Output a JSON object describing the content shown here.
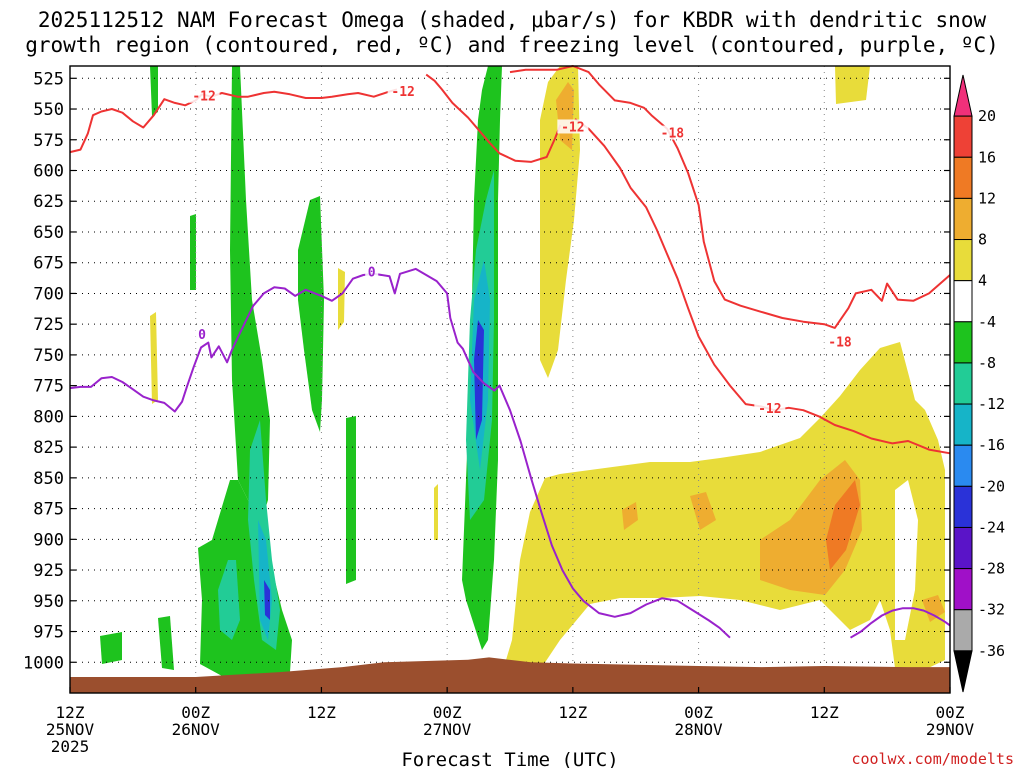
{
  "chart_data": {
    "type": "time-height",
    "title_line1": "2025112512 NAM Forecast Omega (shaded, μbar/s) for KBDR with dendritic snow",
    "title_line2": "growth region (contoured, red, ºC) and freezing level (contoured, purple, ºC)",
    "xlabel": "Forecast Time (UTC)",
    "credit": "coolwx.com/modelts",
    "x_range_hours": [
      0,
      84
    ],
    "y_range_hpa": [
      1025,
      515
    ],
    "y_ticks": [
      "525",
      "550",
      "575",
      "600",
      "625",
      "650",
      "675",
      "700",
      "725",
      "750",
      "775",
      "800",
      "825",
      "850",
      "875",
      "900",
      "925",
      "950",
      "975",
      "1000"
    ],
    "x_ticks": [
      {
        "h": 0,
        "l1": "12Z",
        "l2": "25NOV",
        "l3": "2025"
      },
      {
        "h": 12,
        "l1": "00Z",
        "l2": "26NOV",
        "l3": ""
      },
      {
        "h": 24,
        "l1": "12Z",
        "l2": "",
        "l3": ""
      },
      {
        "h": 36,
        "l1": "00Z",
        "l2": "27NOV",
        "l3": ""
      },
      {
        "h": 48,
        "l1": "12Z",
        "l2": "",
        "l3": ""
      },
      {
        "h": 60,
        "l1": "00Z",
        "l2": "28NOV",
        "l3": ""
      },
      {
        "h": 72,
        "l1": "12Z",
        "l2": "",
        "l3": ""
      },
      {
        "h": 84,
        "l1": "00Z",
        "l2": "29NOV",
        "l3": ""
      }
    ],
    "colorbar": {
      "labels": [
        "20",
        "16",
        "12",
        "8",
        "4",
        "-4",
        "-8",
        "-12",
        "-16",
        "-20",
        "-24",
        "-28",
        "-32",
        "-36"
      ],
      "colors": [
        "#f0307a",
        "#ee4136",
        "#ef7a24",
        "#eead30",
        "#e8dc3a",
        "#ffffff",
        "#1ec31e",
        "#22cc96",
        "#16b4c8",
        "#2a8af0",
        "#2a32d8",
        "#5a14c8",
        "#a010c8",
        "#aaaaaa",
        "#000000"
      ]
    },
    "contour_labels": [
      {
        "text": "-12",
        "h": 12.8,
        "p": 540,
        "color": "#ee3333"
      },
      {
        "text": "-12",
        "h": 31.8,
        "p": 536,
        "color": "#ee3333"
      },
      {
        "text": "-12",
        "h": 48.0,
        "p": 565,
        "color": "#ee3333"
      },
      {
        "text": "-18",
        "h": 57.5,
        "p": 570,
        "color": "#ee3333"
      },
      {
        "text": "-18",
        "h": 73.5,
        "p": 740,
        "color": "#ee3333"
      },
      {
        "text": "-12",
        "h": 66.8,
        "p": 794,
        "color": "#ee3333"
      },
      {
        "text": "0",
        "h": 12.6,
        "p": 734,
        "color": "#9922cc"
      },
      {
        "text": "0",
        "h": 28.8,
        "p": 683,
        "color": "#9922cc"
      }
    ],
    "series": [
      {
        "name": "-12C contour (west)",
        "color": "#ee3333",
        "points": [
          [
            0,
            585
          ],
          [
            1,
            583
          ],
          [
            1.7,
            570
          ],
          [
            2.2,
            555
          ],
          [
            3,
            552
          ],
          [
            4,
            550
          ],
          [
            5,
            553
          ],
          [
            6,
            560
          ],
          [
            7,
            565
          ],
          [
            8,
            555
          ],
          [
            9,
            542
          ],
          [
            10,
            545
          ],
          [
            11,
            547
          ],
          [
            12,
            543
          ],
          [
            12.6,
            538
          ],
          [
            13.5,
            540
          ],
          [
            14.5,
            537
          ],
          [
            16,
            540
          ],
          [
            17,
            540
          ],
          [
            18.5,
            537
          ],
          [
            19.5,
            536
          ],
          [
            21,
            538
          ],
          [
            22.5,
            541
          ],
          [
            24,
            541
          ],
          [
            25,
            540
          ],
          [
            26.5,
            538
          ],
          [
            27.5,
            537
          ],
          [
            29,
            540
          ],
          [
            30.4,
            536
          ],
          [
            31.2,
            534
          ]
        ]
      },
      {
        "name": "-12C contour (north)",
        "color": "#ee3333",
        "points": [
          [
            34,
            522
          ],
          [
            34.8,
            527
          ],
          [
            35.5,
            534
          ],
          [
            36.5,
            545
          ],
          [
            38,
            557
          ],
          [
            39,
            567
          ],
          [
            40,
            577
          ],
          [
            41,
            586
          ],
          [
            42.5,
            592
          ],
          [
            44,
            593
          ],
          [
            45.5,
            589
          ],
          [
            46.3,
            574
          ],
          [
            46.8,
            563
          ]
        ]
      },
      {
        "name": "-12C contour (falling)",
        "color": "#ee3333",
        "points": [
          [
            48.2,
            558
          ],
          [
            49.5,
            566
          ],
          [
            51,
            580
          ],
          [
            52.5,
            598
          ],
          [
            53.5,
            614
          ],
          [
            55,
            630
          ],
          [
            56,
            648
          ],
          [
            57,
            668
          ],
          [
            58,
            688
          ],
          [
            59,
            712
          ],
          [
            60,
            735
          ],
          [
            61.5,
            758
          ],
          [
            63,
            775
          ],
          [
            64.5,
            790
          ],
          [
            66,
            792
          ],
          [
            67.2,
            795
          ],
          [
            68.6,
            793
          ],
          [
            70,
            795
          ],
          [
            71.5,
            800
          ],
          [
            73,
            807
          ],
          [
            74.8,
            812
          ],
          [
            76.5,
            818
          ],
          [
            78.5,
            822
          ],
          [
            80,
            820
          ],
          [
            82,
            827
          ],
          [
            84,
            830
          ]
        ]
      },
      {
        "name": "-18C contour",
        "color": "#ee3333",
        "points": [
          [
            42,
            520
          ],
          [
            43.5,
            518
          ],
          [
            45,
            518
          ],
          [
            46.5,
            518
          ],
          [
            48,
            515
          ],
          [
            49.5,
            520
          ],
          [
            50.5,
            530
          ],
          [
            52,
            543
          ],
          [
            53.5,
            545
          ],
          [
            54.8,
            549
          ],
          [
            55.5,
            555
          ],
          [
            57,
            566
          ],
          [
            58,
            582
          ],
          [
            59,
            602
          ],
          [
            60,
            628
          ],
          [
            60.5,
            658
          ],
          [
            61.5,
            690
          ],
          [
            62.5,
            705
          ],
          [
            64,
            710
          ],
          [
            66,
            715
          ],
          [
            68,
            720
          ],
          [
            70,
            723
          ],
          [
            72,
            725
          ],
          [
            73,
            728
          ],
          [
            74.3,
            712
          ],
          [
            75,
            700
          ],
          [
            76.5,
            697
          ],
          [
            77.5,
            706
          ],
          [
            78,
            692
          ],
          [
            79,
            705
          ],
          [
            80.5,
            706
          ],
          [
            82,
            700
          ],
          [
            84,
            685
          ]
        ]
      },
      {
        "name": "0C freezing level (west)",
        "color": "#9922cc",
        "points": [
          [
            0,
            777
          ],
          [
            1,
            776
          ],
          [
            2,
            776
          ],
          [
            3,
            769
          ],
          [
            4,
            768
          ],
          [
            5,
            772
          ],
          [
            6,
            778
          ],
          [
            7,
            784
          ],
          [
            8,
            787
          ],
          [
            9,
            789
          ],
          [
            10,
            796
          ],
          [
            10.7,
            788
          ],
          [
            11.2,
            775
          ],
          [
            11.8,
            760
          ],
          [
            12.5,
            744
          ],
          [
            13.2,
            740
          ],
          [
            13.5,
            752
          ],
          [
            14.2,
            743
          ],
          [
            15,
            756
          ],
          [
            15.5,
            745
          ],
          [
            16.8,
            722
          ],
          [
            17.5,
            710
          ],
          [
            18.5,
            700
          ],
          [
            19.5,
            695
          ],
          [
            20.5,
            696
          ],
          [
            21.5,
            702
          ],
          [
            22.5,
            697
          ],
          [
            24,
            702
          ],
          [
            25,
            706
          ],
          [
            26,
            700
          ],
          [
            27,
            688
          ],
          [
            28,
            685
          ],
          [
            29,
            684
          ],
          [
            30.5,
            686
          ],
          [
            31,
            700
          ],
          [
            31.5,
            684
          ],
          [
            33,
            680
          ],
          [
            34,
            685
          ],
          [
            35,
            690
          ],
          [
            36,
            700
          ],
          [
            36.3,
            720
          ],
          [
            37,
            740
          ],
          [
            37.5,
            745
          ],
          [
            38.5,
            764
          ],
          [
            39.5,
            773
          ],
          [
            40.5,
            779
          ],
          [
            41,
            775
          ],
          [
            42,
            795
          ],
          [
            43,
            820
          ],
          [
            44,
            850
          ],
          [
            45,
            878
          ],
          [
            46,
            905
          ],
          [
            47,
            925
          ],
          [
            48,
            940
          ],
          [
            49,
            950
          ],
          [
            50.5,
            960
          ],
          [
            52,
            963
          ],
          [
            53.5,
            960
          ],
          [
            55,
            953
          ],
          [
            56.5,
            948
          ],
          [
            58,
            950
          ],
          [
            59.5,
            958
          ],
          [
            61,
            966
          ],
          [
            62,
            972
          ],
          [
            63,
            980
          ]
        ]
      },
      {
        "name": "0C freezing level (east)",
        "color": "#9922cc",
        "points": [
          [
            74.5,
            980
          ],
          [
            75.5,
            975
          ],
          [
            76.5,
            968
          ],
          [
            77.5,
            962
          ],
          [
            78.5,
            958
          ],
          [
            79.5,
            956
          ],
          [
            80.5,
            956
          ],
          [
            81.5,
            958
          ],
          [
            82.5,
            962
          ],
          [
            83.5,
            967
          ],
          [
            84,
            970
          ]
        ]
      }
    ],
    "terrain_profile": [
      [
        0,
        1012
      ],
      [
        12,
        1012
      ],
      [
        20,
        1008
      ],
      [
        26,
        1004
      ],
      [
        30,
        1000
      ],
      [
        38,
        998
      ],
      [
        40,
        996
      ],
      [
        44,
        1000
      ],
      [
        48,
        1001
      ],
      [
        54,
        1002
      ],
      [
        60,
        1003
      ],
      [
        66,
        1004
      ],
      [
        72,
        1003
      ],
      [
        80,
        1004
      ],
      [
        84,
        1004
      ]
    ]
  }
}
